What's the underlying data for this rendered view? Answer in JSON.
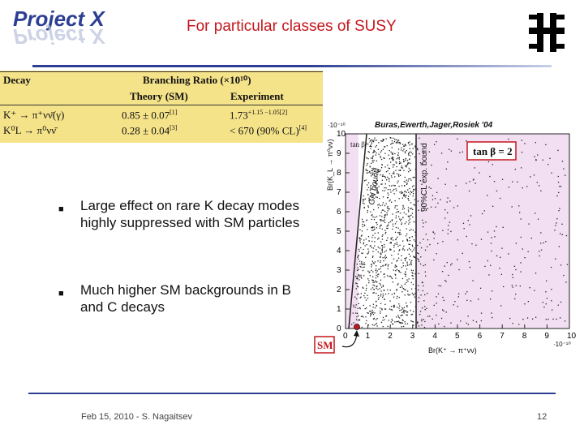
{
  "header": {
    "logo_text": "Project X",
    "title": "For particular classes of SUSY"
  },
  "table": {
    "col_decay": "Decay",
    "col_br": "Branching Ratio (×10¹⁰)",
    "col_theory": "Theory (SM)",
    "col_experiment": "Experiment",
    "rows": [
      {
        "decay": "K⁺ → π⁺νν̄(γ)",
        "theory": "0.85 ± 0.07",
        "theory_ref": "[1]",
        "experiment": "1.73",
        "experiment_err": "+1.15 −1.05",
        "experiment_ref": "[2]"
      },
      {
        "decay": "K⁰L → π⁰νν̄",
        "theory": "0.28 ± 0.04",
        "theory_ref": "[3]",
        "experiment": "< 670  (90% CL)",
        "experiment_ref": "[4]"
      }
    ]
  },
  "bullets": [
    "Large effect on rare K decay modes highly suppressed with SM particles",
    "Much higher SM backgrounds in B and C decays"
  ],
  "plot": {
    "author_label": "Buras,Ewerth,Jager,Rosiek '04",
    "tanb_box": "tan β = 2",
    "tanb_small": "tan β=2",
    "gn_bound": "GN bound",
    "exp_bound": "90%CL exp. bound",
    "y_label": "Br(K_L → π⁰νν)",
    "x_label": "Br(K⁺ → π⁺νν)",
    "y_exp": "·10⁻¹⁰",
    "x_exp": "·10⁻¹⁰",
    "sm_label": "SM",
    "x_ticks": [
      "0",
      "1",
      "2",
      "3",
      "4",
      "5",
      "6",
      "7",
      "8",
      "9",
      "10"
    ],
    "y_ticks": [
      "0",
      "1",
      "2",
      "3",
      "4",
      "5",
      "6",
      "7",
      "8",
      "9",
      "10"
    ],
    "colors": {
      "region_pink": "#f2dff2",
      "points": "#222222",
      "sm_box": "#c4161c",
      "sm_marker": "#c4161c"
    }
  },
  "footer": {
    "text": "Feb 15, 2010 - S. Nagaitsev",
    "page": "12"
  }
}
